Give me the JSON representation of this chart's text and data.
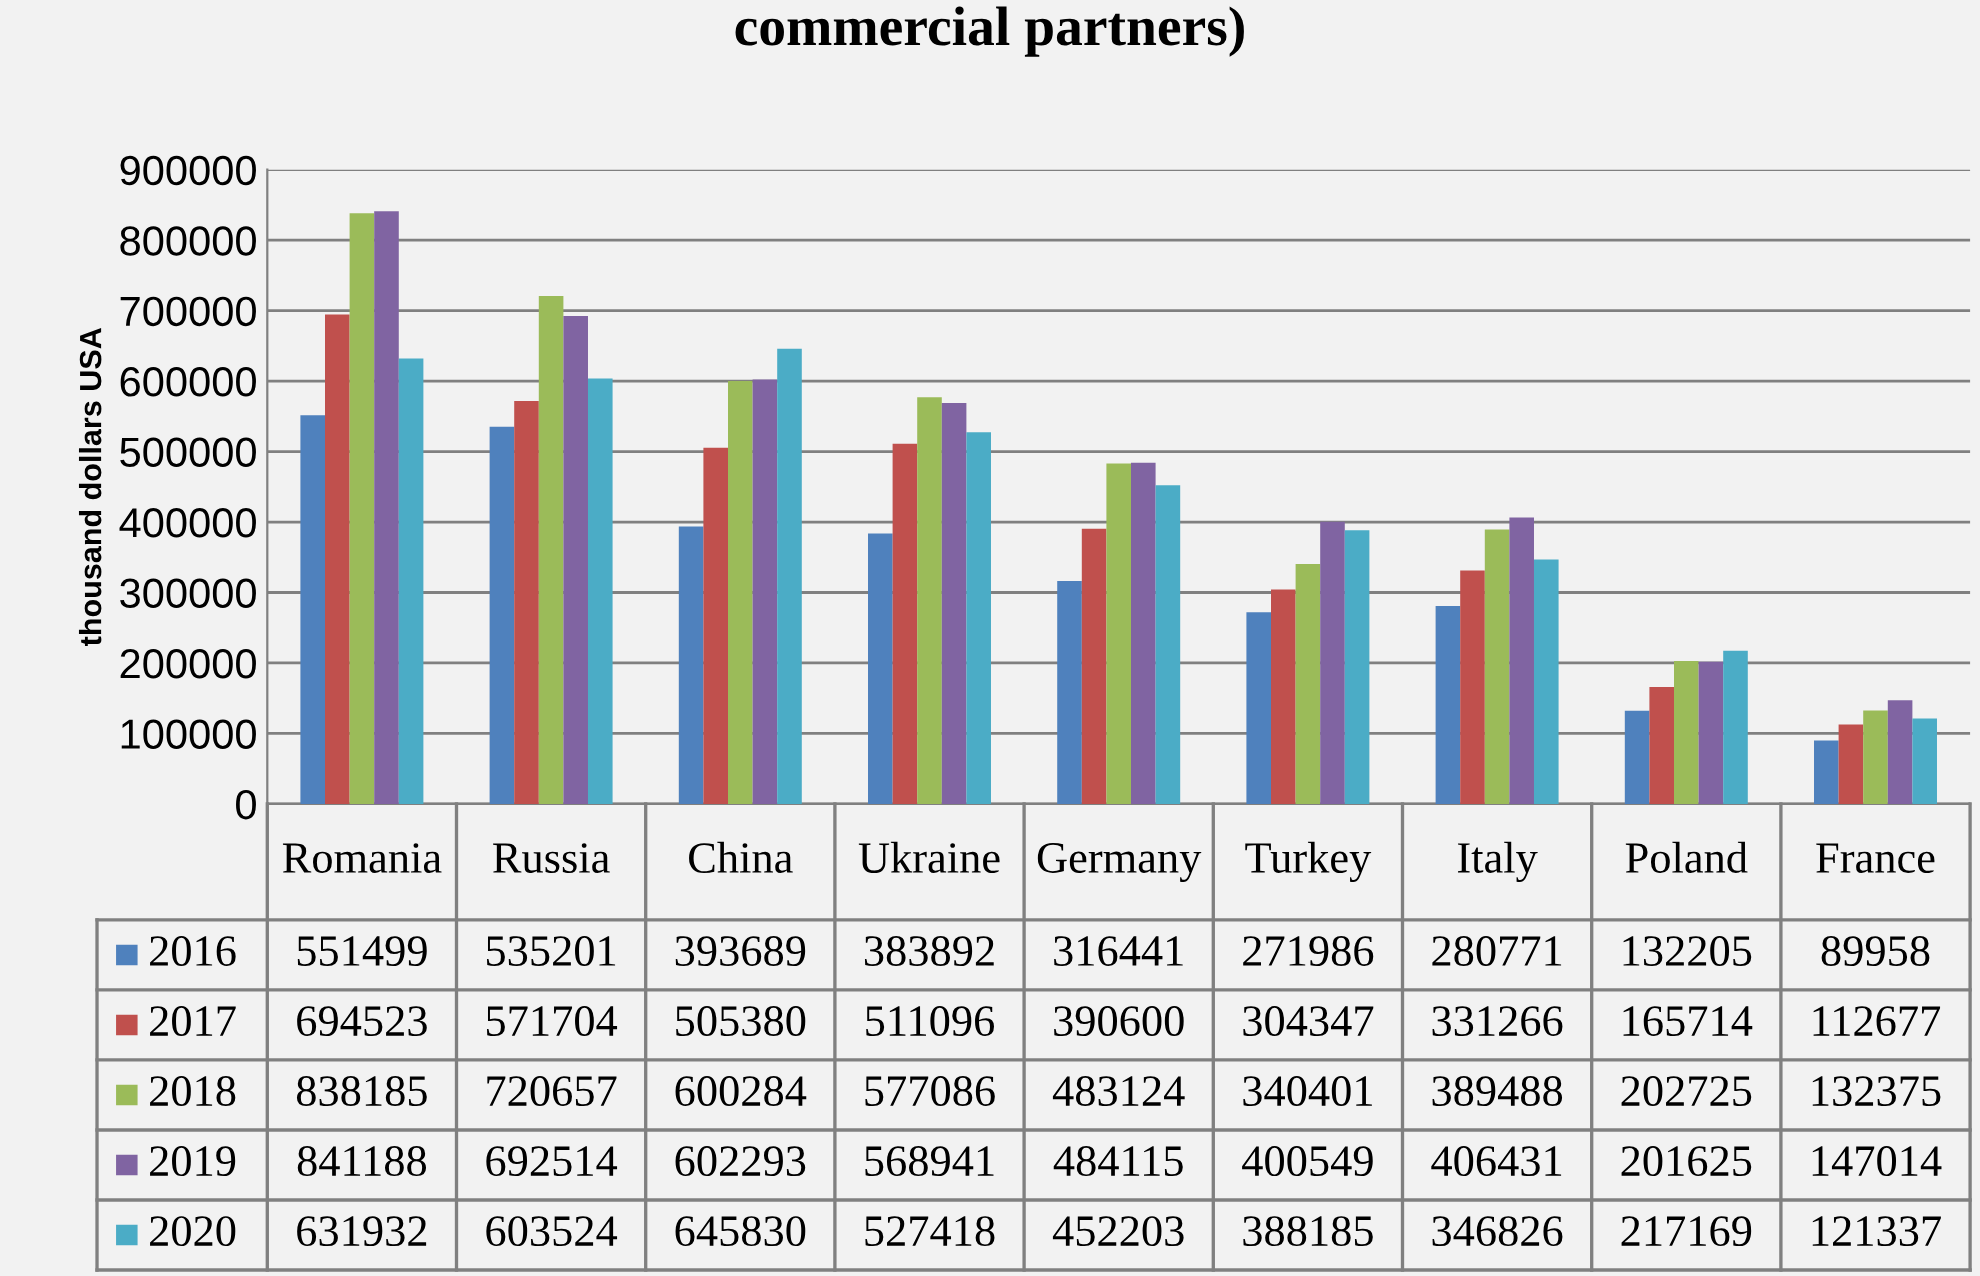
{
  "chart_data": {
    "type": "bar",
    "title": "commercial partners)",
    "ylabel": "thousand dollars USA",
    "categories": [
      "Romania",
      "Russia",
      "China",
      "Ukraine",
      "Germany",
      "Turkey",
      "Italy",
      "Poland",
      "France"
    ],
    "series": [
      {
        "name": "2016",
        "color": "#4f81bd",
        "values": [
          551499,
          535201,
          393689,
          383892,
          316441,
          271986,
          280771,
          132205,
          89958
        ]
      },
      {
        "name": "2017",
        "color": "#c0504d",
        "values": [
          694523,
          571704,
          505380,
          511096,
          390600,
          304347,
          331266,
          165714,
          112677
        ]
      },
      {
        "name": "2018",
        "color": "#9bbb59",
        "values": [
          838185,
          720657,
          600284,
          577086,
          483124,
          340401,
          389488,
          202725,
          132375
        ]
      },
      {
        "name": "2019",
        "color": "#8064a2",
        "values": [
          841188,
          692514,
          602293,
          568941,
          484115,
          400549,
          406431,
          201625,
          147014
        ]
      },
      {
        "name": "2020",
        "color": "#4bacc6",
        "values": [
          631932,
          603524,
          645830,
          527418,
          452203,
          388185,
          346826,
          217169,
          121337
        ]
      }
    ],
    "ylim": [
      0,
      900000
    ],
    "yticks": [
      0,
      100000,
      200000,
      300000,
      400000,
      500000,
      600000,
      700000,
      800000,
      900000
    ],
    "grid": "y",
    "data_labels": true,
    "legend": "bottom left"
  }
}
